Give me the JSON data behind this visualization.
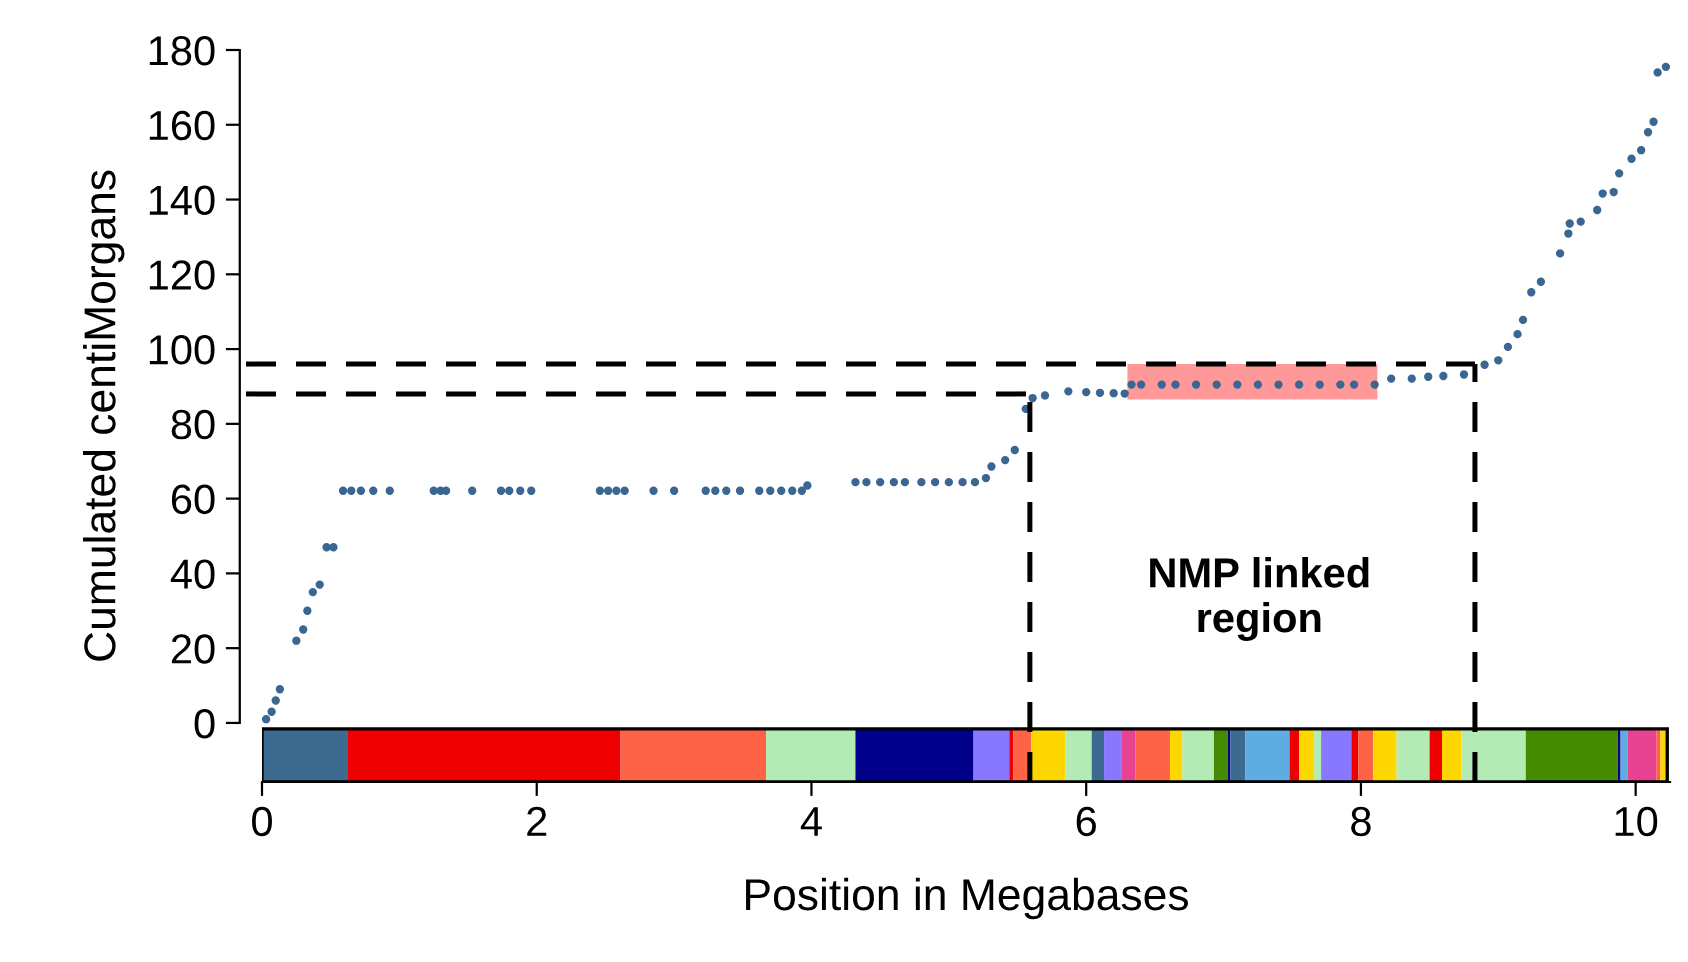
{
  "chart_data": {
    "type": "scatter",
    "xlabel": "Position in Megabases",
    "ylabel": "Cumulated centiMorgans",
    "marker": "circle",
    "grid": false,
    "xlim": [
      0,
      10.25
    ],
    "xticks": [
      0,
      2,
      4,
      6,
      8,
      10
    ],
    "ylim": [
      -15.8,
      180
    ],
    "yticks": [
      0,
      20,
      40,
      60,
      80,
      100,
      120,
      140,
      160,
      180
    ],
    "series": [
      {
        "color": "#3a6691",
        "x": [
          0.03,
          0.07,
          0.1,
          0.13,
          0.25,
          0.3,
          0.33,
          0.37,
          0.42,
          0.47,
          0.52,
          0.59,
          0.65,
          0.72,
          0.81,
          0.93,
          1.25,
          1.3,
          1.34,
          1.53,
          1.74,
          1.8,
          1.88,
          1.96,
          2.46,
          2.52,
          2.58,
          2.64,
          2.85,
          3.0,
          3.23,
          3.3,
          3.38,
          3.48,
          3.62,
          3.7,
          3.78,
          3.86,
          3.93,
          3.97,
          4.32,
          4.4,
          4.5,
          4.6,
          4.68,
          4.8,
          4.9,
          5.0,
          5.1,
          5.19,
          5.27,
          5.31,
          5.41,
          5.48,
          5.56,
          5.61,
          5.7,
          5.87,
          6.0,
          6.1,
          6.2,
          6.28,
          6.33,
          6.4,
          6.55,
          6.65,
          6.8,
          6.95,
          7.1,
          7.25,
          7.4,
          7.55,
          7.7,
          7.85,
          7.95,
          8.1,
          8.22,
          8.37,
          8.49,
          8.6,
          8.75,
          8.9,
          9.0,
          9.07,
          9.14,
          9.18,
          9.24,
          9.31,
          9.45,
          9.51,
          9.52,
          9.6,
          9.72,
          9.76,
          9.84,
          9.88,
          9.97,
          10.04,
          10.09,
          10.13,
          10.16,
          10.22
        ],
        "values": [
          1,
          3,
          6,
          9,
          22,
          25,
          30,
          35,
          37,
          47,
          47,
          62.1,
          62.1,
          62.1,
          62.1,
          62.1,
          62.1,
          62.1,
          62.1,
          62.1,
          62.1,
          62.1,
          62.1,
          62.1,
          62.1,
          62.1,
          62.1,
          62.1,
          62.1,
          62.1,
          62.1,
          62.1,
          62.1,
          62.1,
          62.1,
          62.1,
          62.1,
          62.1,
          62.1,
          63.5,
          64.4,
          64.4,
          64.4,
          64.4,
          64.4,
          64.4,
          64.4,
          64.4,
          64.4,
          64.4,
          65.5,
          68.6,
          70.3,
          73,
          84,
          86.9,
          87.6,
          88.7,
          88.5,
          88.3,
          88.2,
          88.1,
          90.5,
          90.5,
          90.5,
          90.5,
          90.5,
          90.5,
          90.5,
          90.5,
          90.5,
          90.5,
          90.5,
          90.5,
          90.5,
          90.5,
          92.1,
          92.1,
          92.6,
          92.8,
          93.2,
          95.8,
          97,
          100.6,
          104,
          107.8,
          115.2,
          118,
          125.6,
          130.9,
          133.6,
          134.1,
          137.2,
          141.6,
          142,
          147,
          150.9,
          153.2,
          158,
          160.8,
          174,
          175.5
        ]
      }
    ],
    "ref_lines": [
      {
        "axis": "y",
        "value": 88,
        "line_style": "dashed",
        "color": "#000000"
      },
      {
        "axis": "y",
        "value": 96,
        "line_style": "dashed",
        "color": "#000000"
      },
      {
        "axis": "x",
        "value": 5.59,
        "line_style": "dashed",
        "color": "#000000"
      },
      {
        "axis": "x",
        "value": 8.83,
        "line_style": "dashed",
        "color": "#000000"
      }
    ],
    "bands": [
      {
        "axis": "x",
        "from": 6.3,
        "to": 8.12,
        "color": "#ff9999"
      },
      {
        "axis": "x",
        "from": 0,
        "to": 0.62,
        "color": "#3d6a8f"
      },
      {
        "axis": "x",
        "from": 0.62,
        "to": 2.61,
        "color": "#ee0000"
      },
      {
        "axis": "x",
        "from": 2.61,
        "to": 3.67,
        "color": "#ff6347"
      },
      {
        "axis": "x",
        "from": 3.67,
        "to": 4.32,
        "color": "#b4ebb4"
      },
      {
        "axis": "x",
        "from": 4.32,
        "to": 5.18,
        "color": "#00008b"
      },
      {
        "axis": "x",
        "from": 5.18,
        "to": 5.44,
        "color": "#8877ff"
      },
      {
        "axis": "x",
        "from": 5.44,
        "to": 5.47,
        "color": "#ee0000"
      },
      {
        "axis": "x",
        "from": 5.47,
        "to": 5.6,
        "color": "#ff6347"
      },
      {
        "axis": "x",
        "from": 5.6,
        "to": 5.85,
        "color": "#ffd700"
      },
      {
        "axis": "x",
        "from": 5.85,
        "to": 6.04,
        "color": "#b4ebb4"
      },
      {
        "axis": "x",
        "from": 6.04,
        "to": 6.13,
        "color": "#3d6a8f"
      },
      {
        "axis": "x",
        "from": 6.13,
        "to": 6.26,
        "color": "#8877ff"
      },
      {
        "axis": "x",
        "from": 6.26,
        "to": 6.36,
        "color": "#e84393"
      },
      {
        "axis": "x",
        "from": 6.36,
        "to": 6.61,
        "color": "#ff6347"
      },
      {
        "axis": "x",
        "from": 6.61,
        "to": 6.7,
        "color": "#ffd700"
      },
      {
        "axis": "x",
        "from": 6.7,
        "to": 6.93,
        "color": "#b4ebb4"
      },
      {
        "axis": "x",
        "from": 6.93,
        "to": 7.03,
        "color": "#458b00"
      },
      {
        "axis": "x",
        "from": 7.03,
        "to": 7.05,
        "color": "#00008b"
      },
      {
        "axis": "x",
        "from": 7.05,
        "to": 7.16,
        "color": "#3d6a8f"
      },
      {
        "axis": "x",
        "from": 7.16,
        "to": 7.48,
        "color": "#5dade2"
      },
      {
        "axis": "x",
        "from": 7.48,
        "to": 7.55,
        "color": "#ee0000"
      },
      {
        "axis": "x",
        "from": 7.55,
        "to": 7.66,
        "color": "#ffd700"
      },
      {
        "axis": "x",
        "from": 7.66,
        "to": 7.71,
        "color": "#b4ebb4"
      },
      {
        "axis": "x",
        "from": 7.71,
        "to": 7.93,
        "color": "#8877ff"
      },
      {
        "axis": "x",
        "from": 7.93,
        "to": 7.98,
        "color": "#ee0000"
      },
      {
        "axis": "x",
        "from": 7.98,
        "to": 8.09,
        "color": "#ff6347"
      },
      {
        "axis": "x",
        "from": 8.09,
        "to": 8.26,
        "color": "#ffd700"
      },
      {
        "axis": "x",
        "from": 8.26,
        "to": 8.5,
        "color": "#b4ebb4"
      },
      {
        "axis": "x",
        "from": 8.5,
        "to": 8.59,
        "color": "#ee0000"
      },
      {
        "axis": "x",
        "from": 8.59,
        "to": 8.73,
        "color": "#ffd700"
      },
      {
        "axis": "x",
        "from": 8.73,
        "to": 9.2,
        "color": "#b4ebb4"
      },
      {
        "axis": "x",
        "from": 9.2,
        "to": 9.87,
        "color": "#458b00"
      },
      {
        "axis": "x",
        "from": 9.87,
        "to": 9.89,
        "color": "#00008b"
      },
      {
        "axis": "x",
        "from": 9.89,
        "to": 9.94,
        "color": "#5dade2"
      },
      {
        "axis": "x",
        "from": 9.94,
        "to": 10.15,
        "color": "#e84393"
      },
      {
        "axis": "x",
        "from": 10.15,
        "to": 10.18,
        "color": "#ff6347"
      },
      {
        "axis": "x",
        "from": 10.18,
        "to": 10.23,
        "color": "#ffd700"
      }
    ],
    "annotations": [
      "NMP linked\nregion"
    ]
  }
}
